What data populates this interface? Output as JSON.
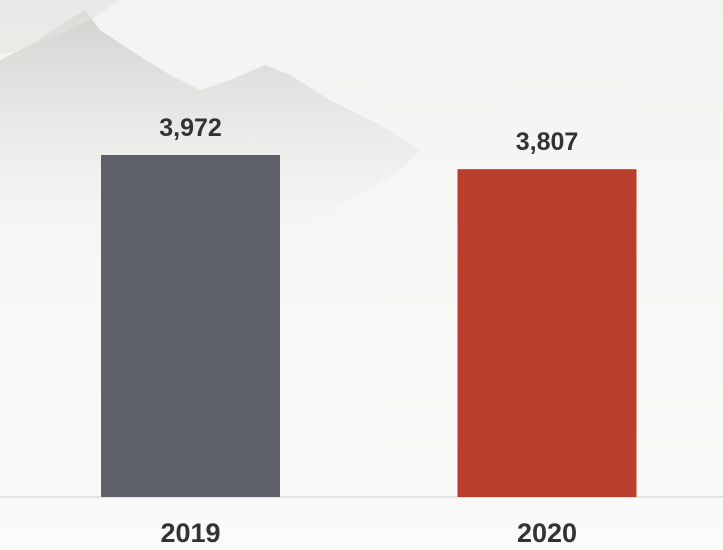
{
  "chart_data": {
    "type": "bar",
    "categories": [
      "2019",
      "2020"
    ],
    "values": [
      3972,
      3807
    ],
    "value_labels": [
      "3,972",
      "3,807"
    ],
    "colors": [
      "#5f6169",
      "#b83f2b"
    ]
  }
}
